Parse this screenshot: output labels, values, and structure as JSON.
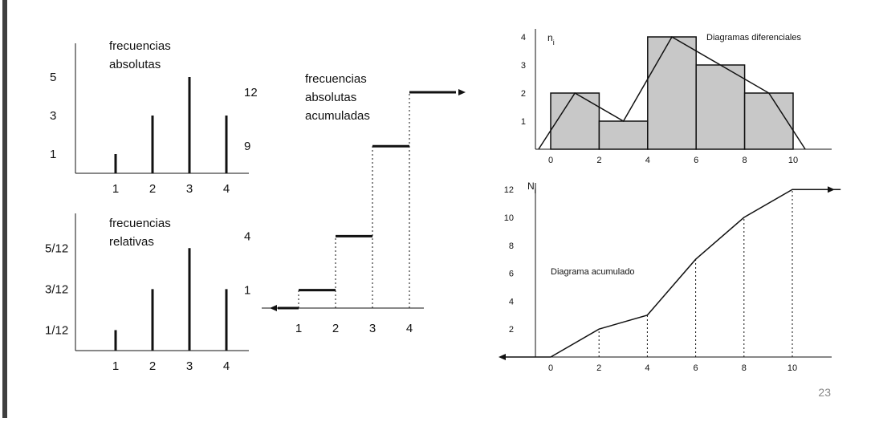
{
  "colors": {
    "bar_fill": "#c8c8c8",
    "ink": "#111111",
    "left_bar": "#3f3f3f",
    "page_number": "#888888"
  },
  "page_number": "23",
  "chart_data": [
    {
      "id": "abs",
      "type": "bar",
      "title_lines": [
        "frecuencias",
        "absolutas"
      ],
      "categories": [
        "1",
        "2",
        "3",
        "4"
      ],
      "values": [
        1,
        3,
        5,
        3
      ],
      "yticks": [
        {
          "v": 1,
          "label": "1"
        },
        {
          "v": 3,
          "label": "3"
        },
        {
          "v": 5,
          "label": "5"
        }
      ],
      "ylim": [
        0,
        5.5
      ]
    },
    {
      "id": "rel",
      "type": "bar",
      "title_lines": [
        "frecuencias",
        "relativas"
      ],
      "categories": [
        "1",
        "2",
        "3",
        "4"
      ],
      "values": [
        0.0833,
        0.25,
        0.4167,
        0.25
      ],
      "yticks": [
        {
          "v": 0.0833,
          "label": "1/12"
        },
        {
          "v": 0.25,
          "label": "3/12"
        },
        {
          "v": 0.4167,
          "label": "5/12"
        }
      ],
      "ylim": [
        0,
        0.46
      ]
    },
    {
      "id": "cum",
      "type": "line",
      "title_lines": [
        "frecuencias",
        "absolutas",
        "acumuladas"
      ],
      "categories": [
        "1",
        "2",
        "3",
        "4"
      ],
      "steps": [
        {
          "x0": 1,
          "x1": 2,
          "y": 1
        },
        {
          "x0": 2,
          "x1": 3,
          "y": 4
        },
        {
          "x0": 3,
          "x1": 4,
          "y": 9
        },
        {
          "x0": 4,
          "x1": 5.5,
          "y": 12
        }
      ],
      "yticks": [
        {
          "v": 1,
          "label": "1"
        },
        {
          "v": 4,
          "label": "4"
        },
        {
          "v": 9,
          "label": "9"
        },
        {
          "v": 12,
          "label": "12"
        }
      ],
      "xlim": [
        0,
        5.5
      ],
      "ylim": [
        0,
        12.8
      ]
    },
    {
      "id": "dif",
      "type": "bar",
      "title": "Diagramas diferenciales",
      "ylabel": "n",
      "ylabel_sub": "i",
      "bins": [
        {
          "x0": 0,
          "x1": 2,
          "y": 2
        },
        {
          "x0": 2,
          "x1": 4,
          "y": 1
        },
        {
          "x0": 4,
          "x1": 6,
          "y": 4
        },
        {
          "x0": 6,
          "x1": 8,
          "y": 3
        },
        {
          "x0": 8,
          "x1": 10,
          "y": 2
        }
      ],
      "polygon": [
        [
          -0.5,
          0
        ],
        [
          1,
          2
        ],
        [
          3,
          1
        ],
        [
          5,
          4
        ],
        [
          7,
          3
        ],
        [
          9,
          2
        ],
        [
          10.5,
          0
        ]
      ],
      "xticks": [
        0,
        2,
        4,
        6,
        8,
        10
      ],
      "yticks": [
        1,
        2,
        3,
        4
      ],
      "xlim": [
        -1.5,
        12
      ],
      "ylim": [
        0,
        4.3
      ]
    },
    {
      "id": "acu",
      "type": "line",
      "title": "Diagrama acumulado",
      "ylabel": "N",
      "ylabel_sub": "i",
      "points": [
        [
          -2,
          0
        ],
        [
          0,
          0
        ],
        [
          2,
          2
        ],
        [
          4,
          3
        ],
        [
          6,
          7
        ],
        [
          8,
          10
        ],
        [
          10,
          12
        ],
        [
          12,
          12
        ]
      ],
      "xticks": [
        0,
        2,
        4,
        6,
        8,
        10
      ],
      "yticks": [
        2,
        4,
        6,
        8,
        10,
        12
      ],
      "xlim": [
        -2,
        12
      ],
      "ylim": [
        0,
        12.5
      ]
    }
  ]
}
